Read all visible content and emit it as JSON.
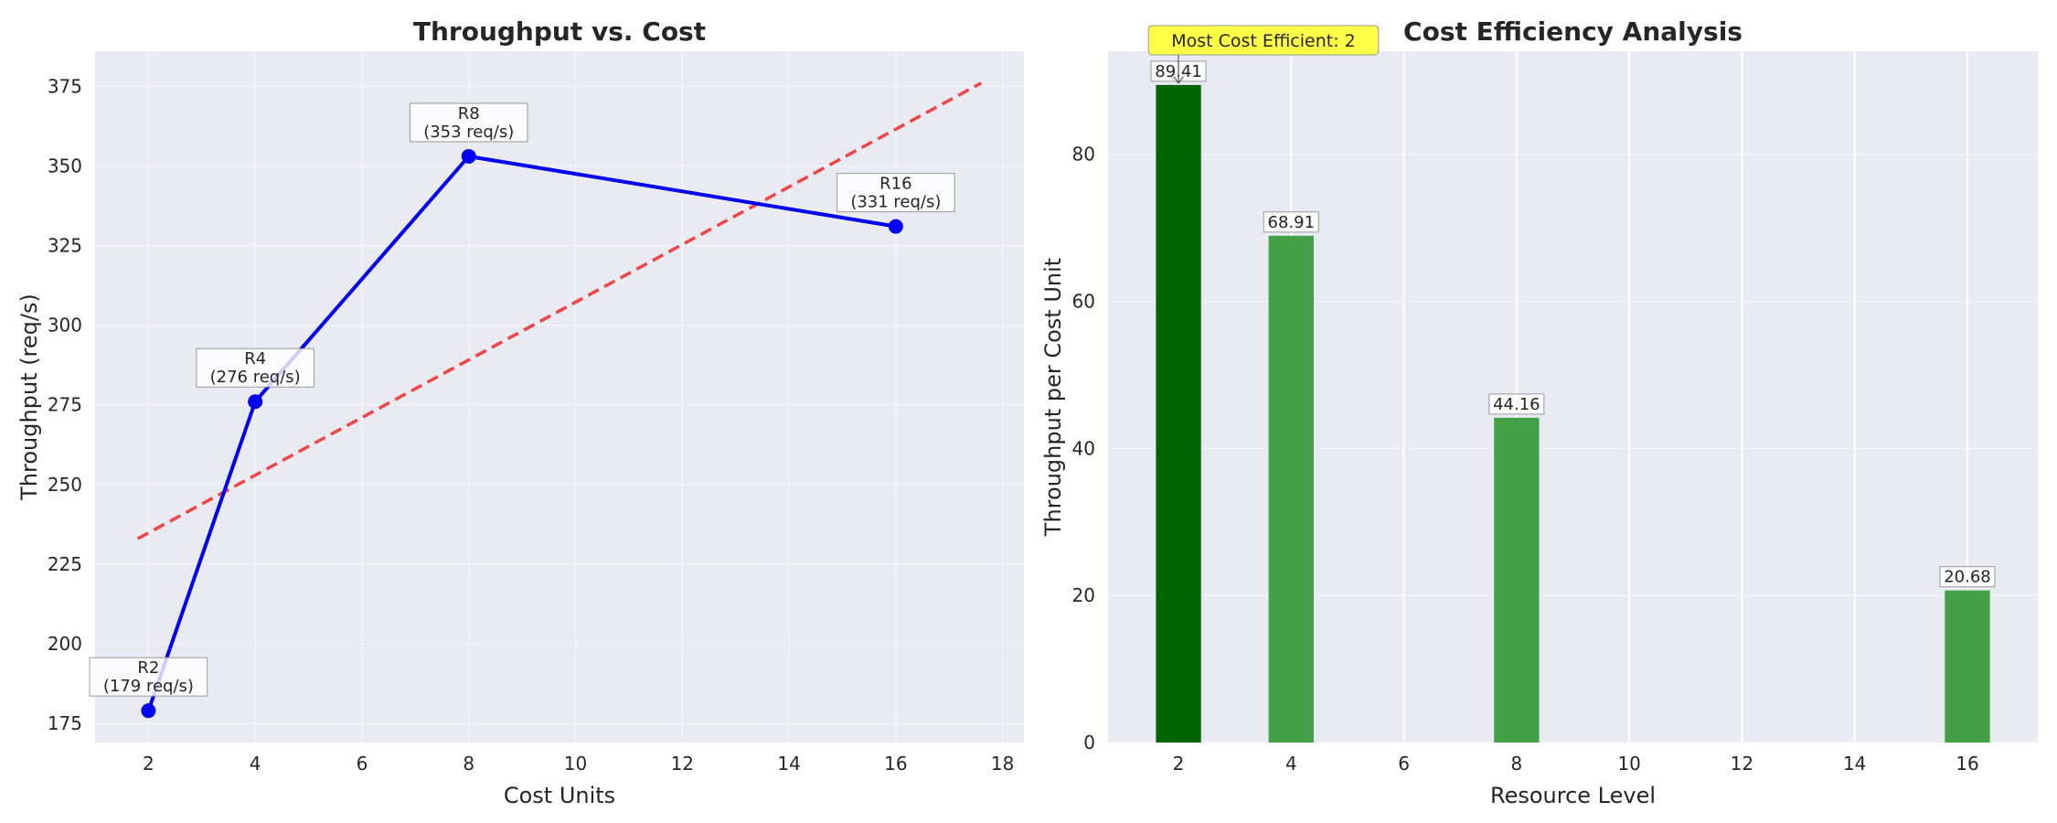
{
  "chart_data": [
    {
      "type": "line",
      "title": "Throughput vs. Cost",
      "xlabel": "Cost Units",
      "ylabel": "Throughput (req/s)",
      "xlim": [
        1,
        18.4
      ],
      "ylim": [
        169,
        386
      ],
      "xticks": [
        2,
        4,
        6,
        8,
        10,
        12,
        14,
        16,
        18
      ],
      "yticks": [
        175,
        200,
        225,
        250,
        275,
        300,
        325,
        350,
        375
      ],
      "grid": true,
      "series": [
        {
          "color": "#0000ee",
          "x": [
            2,
            4,
            8,
            16
          ],
          "y": [
            179,
            276,
            353,
            331
          ]
        }
      ],
      "trend_line": {
        "color": "#ee3333",
        "style": "dashed",
        "x": [
          1.8,
          17.6
        ],
        "y": [
          233,
          376
        ]
      },
      "annotations": [
        {
          "x": 2,
          "y": 179,
          "line1": "R2",
          "line2": "(179 req/s)"
        },
        {
          "x": 4,
          "y": 276,
          "line1": "R4",
          "line2": "(276 req/s)"
        },
        {
          "x": 8,
          "y": 353,
          "line1": "R8",
          "line2": "(353 req/s)"
        },
        {
          "x": 16,
          "y": 331,
          "line1": "R16",
          "line2": "(331 req/s)"
        }
      ]
    },
    {
      "type": "bar",
      "title": "Cost Efficiency Analysis",
      "xlabel": "Resource Level",
      "ylabel": "Throughput per Cost Unit",
      "xlim": [
        0.75,
        17.25
      ],
      "ylim": [
        0,
        94
      ],
      "xticks": [
        2,
        4,
        6,
        8,
        10,
        12,
        14,
        16
      ],
      "yticks": [
        0,
        20,
        40,
        60,
        80
      ],
      "grid": true,
      "bar_width": 0.8,
      "x": [
        2,
        4,
        8,
        16
      ],
      "values": [
        89.41,
        68.91,
        44.16,
        20.68
      ],
      "value_labels": [
        "89.41",
        "68.91",
        "44.16",
        "20.68"
      ],
      "colors": [
        "#006400",
        "#43a047",
        "#43a047",
        "#43a047"
      ],
      "highlight": {
        "text": "Most Cost Efficient: 2",
        "x": 2,
        "color": "#ffff33"
      }
    }
  ],
  "colors": {
    "plot_background": "#eaeaf2",
    "grid": "#ffffff",
    "text": "#262626"
  }
}
